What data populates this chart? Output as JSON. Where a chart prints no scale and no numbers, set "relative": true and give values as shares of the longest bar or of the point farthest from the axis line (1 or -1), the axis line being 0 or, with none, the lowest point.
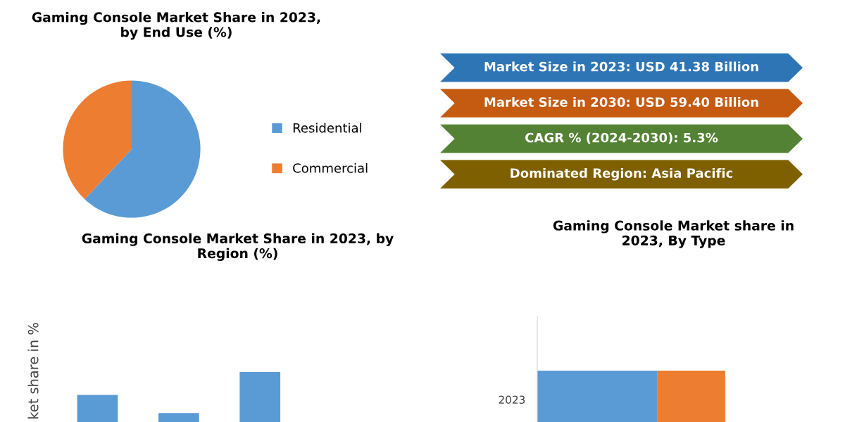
{
  "chart_data": [
    {
      "type": "pie",
      "title": "Gaming Console Market Share in 2023,\nby End Use (%)",
      "categories": [
        "Residential",
        "Commercial"
      ],
      "values": [
        62,
        38
      ],
      "colors": [
        "#5b9bd5",
        "#ed7d31"
      ],
      "legend": "right"
    },
    {
      "type": "other",
      "annotations": [
        "Market Size in 2023: USD 41.38 Billion",
        "Market Size in 2030: USD 59.40 Billion",
        "CAGR % (2024-2030): 5.3%",
        "Dominated Region: Asia Pacific"
      ],
      "colors": [
        "#2e75b6",
        "#c55a11",
        "#548235",
        "#7f6000"
      ]
    },
    {
      "type": "bar",
      "title": "Gaming Console Market Share in 2023, by\nRegion (%)",
      "ylabel": "ket share in %",
      "relative": true,
      "categories": [
        null,
        null,
        null
      ],
      "values": [
        0.54,
        0.18,
        1
      ],
      "color": "#5b9bd5",
      "tick_labels": false
    },
    {
      "type": "bar",
      "title": "Gaming Console Market share in\n2023, By Type",
      "orientation": "horizontal",
      "stacked": true,
      "relative": true,
      "categories": [
        "2023"
      ],
      "tick_labels": "y",
      "series": [
        {
          "color": "#5b9bd5",
          "values": [
            0.64
          ]
        },
        {
          "color": "#ed7d31",
          "values": [
            0.36
          ]
        }
      ]
    }
  ]
}
